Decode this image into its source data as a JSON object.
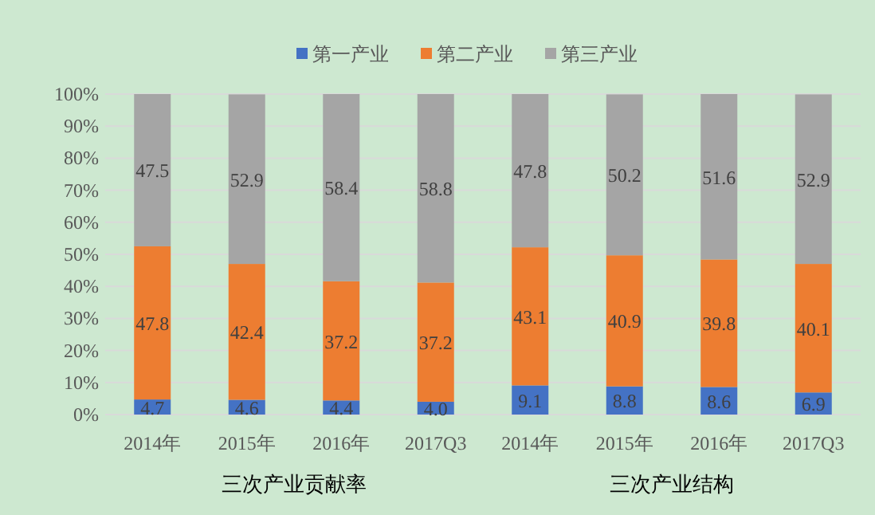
{
  "chart_data": {
    "type": "bar",
    "stacked": true,
    "data_labels": true,
    "legend": "top",
    "grid": "y",
    "categories": [
      "2014年",
      "2015年",
      "2016年",
      "2017Q3",
      "2014年",
      "2015年",
      "2016年",
      "2017Q3"
    ],
    "series": [
      {
        "name": "第一产业",
        "color": "#4472c4",
        "values": [
          4.7,
          4.6,
          4.4,
          4.0,
          9.1,
          8.8,
          8.6,
          6.9
        ],
        "value_labels": [
          "4.7",
          "4.6",
          "4.4",
          "4.0",
          "9.1",
          "8.8",
          "8.6",
          "6.9"
        ]
      },
      {
        "name": "第二产业",
        "color": "#ed7d31",
        "values": [
          47.8,
          42.4,
          37.2,
          37.2,
          43.1,
          40.9,
          39.8,
          40.1
        ]
      },
      {
        "name": "第三产业",
        "color": "#a5a5a5",
        "values": [
          47.5,
          52.9,
          58.4,
          58.8,
          47.8,
          50.2,
          51.6,
          52.9
        ]
      }
    ],
    "ylim": [
      0,
      100
    ],
    "yticks": [
      {
        "value": 0,
        "label": "0%"
      },
      {
        "value": 10,
        "label": "10%"
      },
      {
        "value": 20,
        "label": "20%"
      },
      {
        "value": 30,
        "label": "30%"
      },
      {
        "value": 40,
        "label": "40%"
      },
      {
        "value": 50,
        "label": "50%"
      },
      {
        "value": 60,
        "label": "60%"
      },
      {
        "value": 70,
        "label": "70%"
      },
      {
        "value": 80,
        "label": "80%"
      },
      {
        "value": 90,
        "label": "90%"
      },
      {
        "value": 100,
        "label": "100%"
      }
    ],
    "annotations": [
      "三次产业贡献率",
      "三次产业结构"
    ]
  }
}
